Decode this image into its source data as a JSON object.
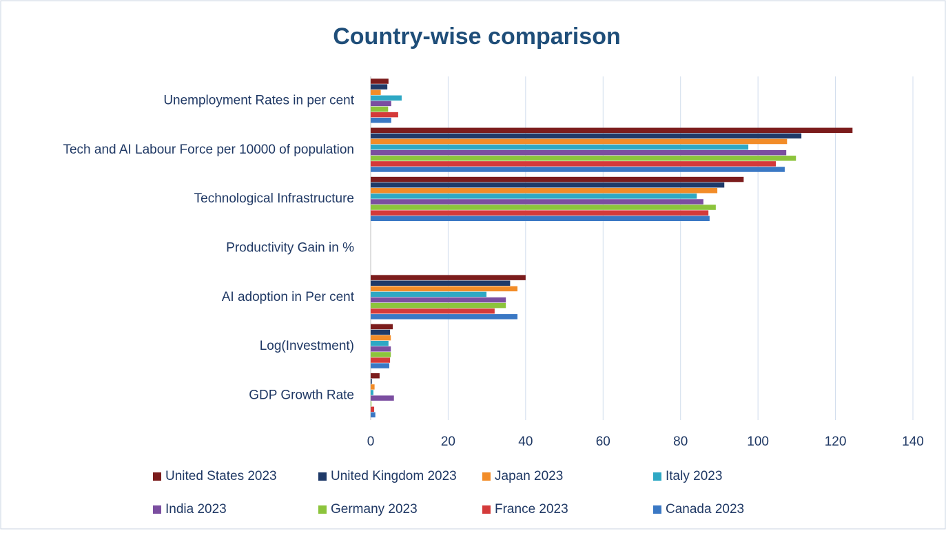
{
  "chart_data": {
    "type": "hbar",
    "title": "Country-wise comparison",
    "categories": [
      "Unemployment Rates in per cent",
      "Tech and AI Labour Force per 10000 of population",
      "Technological Infrastructure",
      "Productivity Gain in %",
      "AI adoption in Per cent",
      "Log(Investment)",
      "GDP Growth Rate"
    ],
    "series": [
      {
        "name": "United States 2023",
        "color": "#7b1c1c",
        "values": [
          4.6,
          124.4,
          96.3,
          0,
          40,
          5.7,
          2.3
        ]
      },
      {
        "name": "United Kingdom 2023",
        "color": "#1f3a68",
        "values": [
          4.3,
          111.2,
          91.3,
          0,
          36,
          5.0,
          0.3
        ]
      },
      {
        "name": "Japan 2023",
        "color": "#f28c28",
        "values": [
          2.6,
          107.5,
          89.5,
          0,
          37.9,
          5.2,
          1.0
        ]
      },
      {
        "name": "Italy 2023",
        "color": "#2ea8c4",
        "values": [
          8.0,
          97.5,
          84.2,
          0,
          29.9,
          4.6,
          0.7
        ]
      },
      {
        "name": "India 2023",
        "color": "#7b4ea0",
        "values": [
          5.3,
          107.3,
          85.9,
          0,
          34.9,
          5.2,
          6.0
        ]
      },
      {
        "name": "Germany 2023",
        "color": "#8cc43c",
        "values": [
          4.5,
          109.8,
          89.1,
          0,
          34.9,
          5.2,
          0.2
        ]
      },
      {
        "name": "France 2023",
        "color": "#d43a3a",
        "values": [
          7.1,
          104.6,
          87.2,
          0,
          32,
          5.0,
          0.9
        ]
      },
      {
        "name": "Canada 2023",
        "color": "#3a78c4",
        "values": [
          5.3,
          106.9,
          87.5,
          0,
          37.9,
          4.8,
          1.2
        ]
      }
    ],
    "xlim": [
      0,
      140
    ],
    "xticks": [
      0,
      20,
      40,
      60,
      80,
      100,
      120,
      140
    ],
    "grid": true
  }
}
